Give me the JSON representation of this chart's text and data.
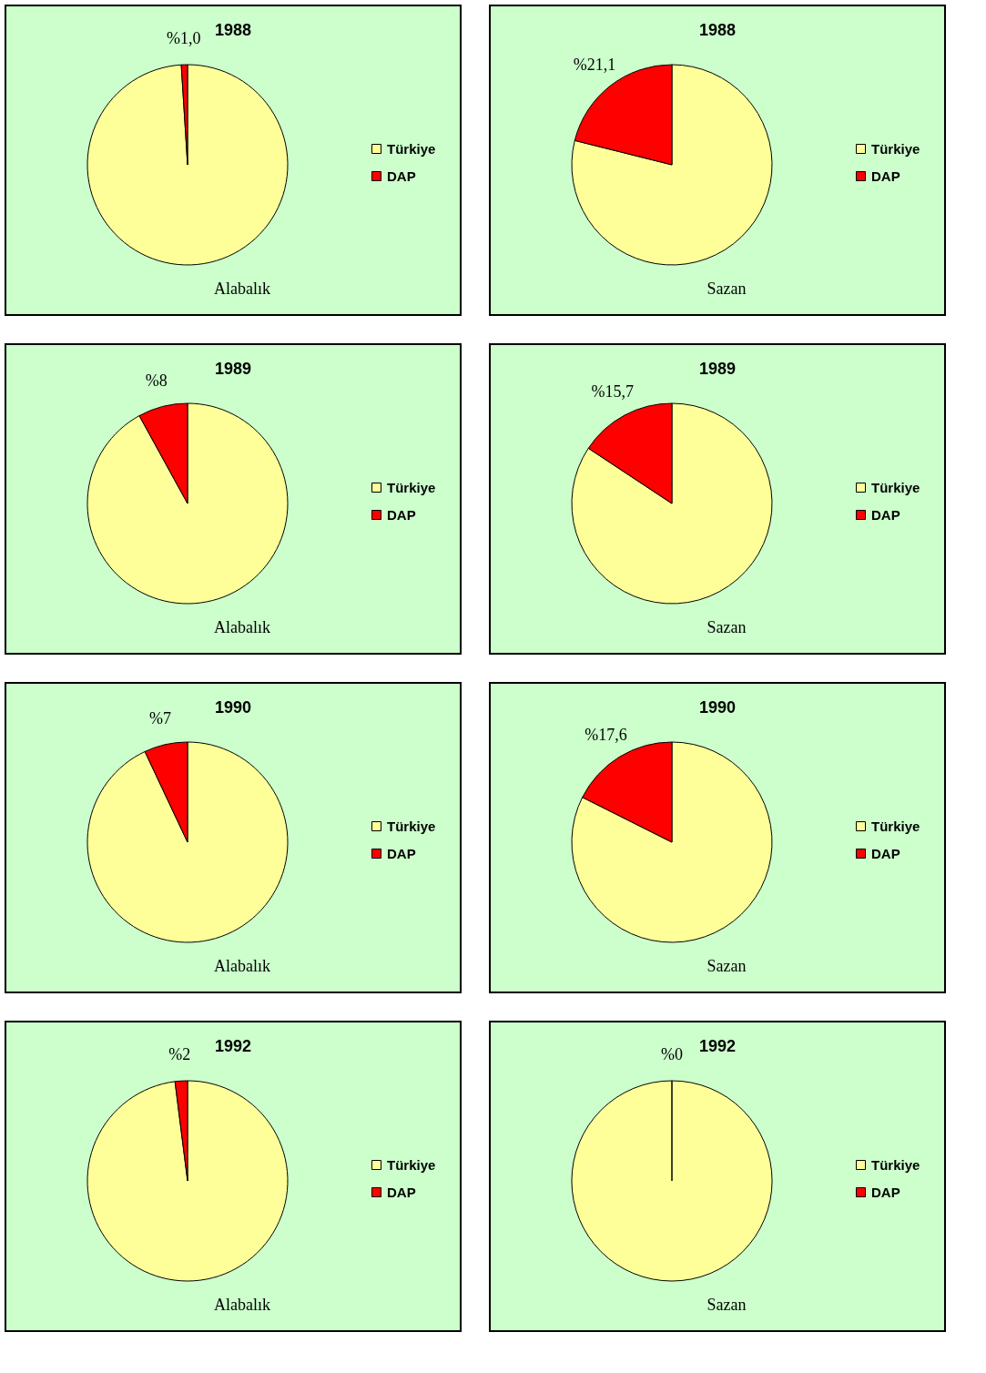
{
  "chart_data": [
    {
      "type": "pie",
      "title": "1988",
      "categories": [
        "Türkiye",
        "DAP"
      ],
      "values": [
        99.0,
        1.0
      ],
      "colors": [
        "#ffff99",
        "#ff0000"
      ],
      "value_labels": [
        null,
        "%1,0"
      ],
      "annotations": [
        "Alabalık"
      ],
      "legend": "right"
    },
    {
      "type": "pie",
      "title": "1988",
      "categories": [
        "Türkiye",
        "DAP"
      ],
      "values": [
        78.9,
        21.1
      ],
      "colors": [
        "#ffff99",
        "#ff0000"
      ],
      "value_labels": [
        null,
        "%21,1"
      ],
      "annotations": [
        "Sazan"
      ],
      "legend": "right"
    },
    {
      "type": "pie",
      "title": "1989",
      "categories": [
        "Türkiye",
        "DAP"
      ],
      "values": [
        92,
        8
      ],
      "colors": [
        "#ffff99",
        "#ff0000"
      ],
      "value_labels": [
        null,
        "%8"
      ],
      "annotations": [
        "Alabalık"
      ],
      "legend": "right"
    },
    {
      "type": "pie",
      "title": "1989",
      "categories": [
        "Türkiye",
        "DAP"
      ],
      "values": [
        84.3,
        15.7
      ],
      "colors": [
        "#ffff99",
        "#ff0000"
      ],
      "value_labels": [
        null,
        "%15,7"
      ],
      "annotations": [
        "Sazan"
      ],
      "legend": "right"
    },
    {
      "type": "pie",
      "title": "1990",
      "categories": [
        "Türkiye",
        "DAP"
      ],
      "values": [
        93,
        7
      ],
      "colors": [
        "#ffff99",
        "#ff0000"
      ],
      "value_labels": [
        null,
        "%7"
      ],
      "annotations": [
        "Alabalık"
      ],
      "legend": "right"
    },
    {
      "type": "pie",
      "title": "1990",
      "categories": [
        "Türkiye",
        "DAP"
      ],
      "values": [
        82.4,
        17.6
      ],
      "colors": [
        "#ffff99",
        "#ff0000"
      ],
      "value_labels": [
        null,
        "%17,6"
      ],
      "annotations": [
        "Sazan"
      ],
      "legend": "right"
    },
    {
      "type": "pie",
      "title": "1992",
      "categories": [
        "Türkiye",
        "DAP"
      ],
      "values": [
        98,
        2
      ],
      "colors": [
        "#ffff99",
        "#ff0000"
      ],
      "value_labels": [
        null,
        "%2"
      ],
      "annotations": [
        "Alabalık"
      ],
      "legend": "right"
    },
    {
      "type": "pie",
      "title": "1992",
      "categories": [
        "Türkiye",
        "DAP"
      ],
      "values": [
        100,
        0
      ],
      "colors": [
        "#ffff99",
        "#ff0000"
      ],
      "value_labels": [
        null,
        "%0"
      ],
      "annotations": [
        "Sazan"
      ],
      "legend": "right"
    }
  ]
}
